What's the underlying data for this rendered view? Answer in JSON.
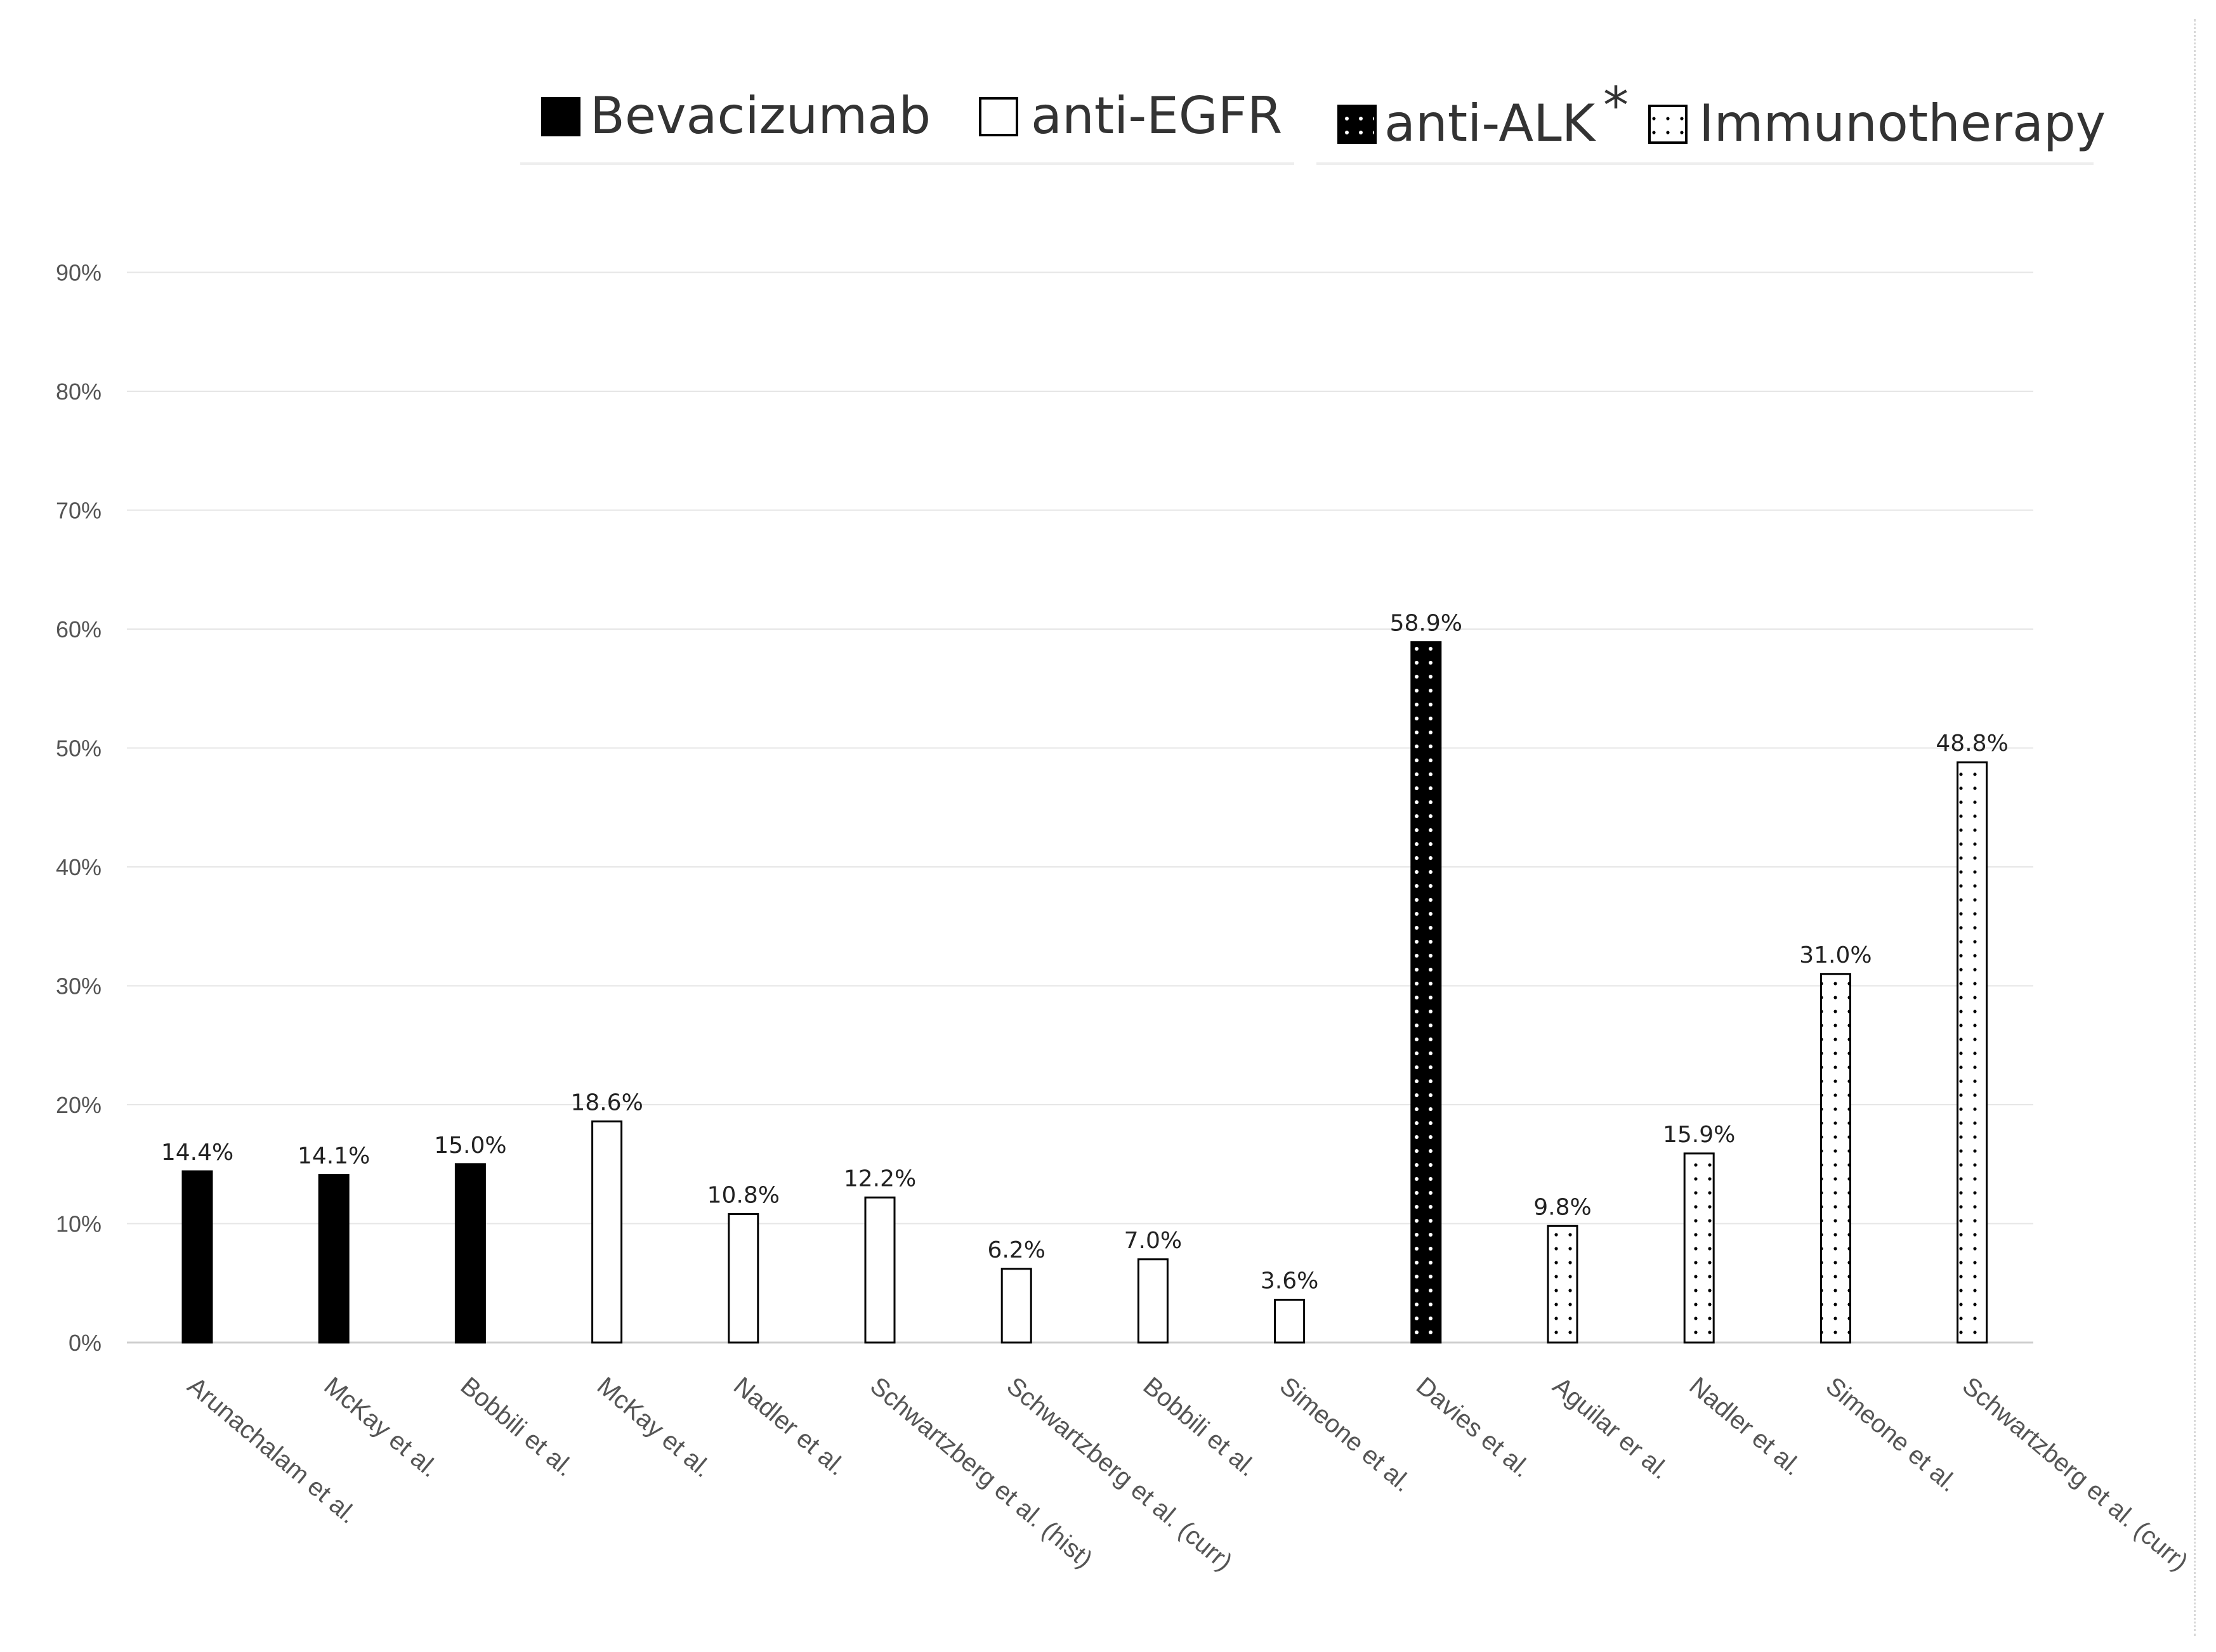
{
  "chart_data": {
    "type": "bar",
    "title": "",
    "xlabel": "",
    "ylabel": "",
    "ylim": [
      0,
      90
    ],
    "yticks": [
      0,
      10,
      20,
      30,
      40,
      50,
      60,
      70,
      80,
      90
    ],
    "ytick_labels": [
      "0%",
      "10%",
      "20%",
      "30%",
      "40%",
      "50%",
      "60%",
      "70%",
      "80%",
      "90%"
    ],
    "grid": true,
    "legend_position": "top",
    "legend": [
      {
        "key": "bev",
        "label": "Bevacizumab",
        "style": "solid-black"
      },
      {
        "key": "egfr",
        "label": "anti-EGFR",
        "style": "white"
      },
      {
        "key": "alk",
        "label": "anti-ALK",
        "asterisk": "*",
        "style": "black-dotted"
      },
      {
        "key": "immuno",
        "label": "Immunotherapy",
        "style": "white-dotted"
      }
    ],
    "bars": [
      {
        "category": "Arunachalam et al.",
        "series": "bev",
        "value": 14.4,
        "label": "14.4%"
      },
      {
        "category": "McKay et al.",
        "series": "bev",
        "value": 14.1,
        "label": "14.1%"
      },
      {
        "category": "Bobbili et al.",
        "series": "bev",
        "value": 15.0,
        "label": "15.0%"
      },
      {
        "category": "McKay et al.",
        "series": "egfr",
        "value": 18.6,
        "label": "18.6%"
      },
      {
        "category": "Nadler et al.",
        "series": "egfr",
        "value": 10.8,
        "label": "10.8%"
      },
      {
        "category": "Schwartzberg et al. (hist)",
        "series": "egfr",
        "value": 12.2,
        "label": "12.2%"
      },
      {
        "category": "Schwartzberg et al. (curr)",
        "series": "egfr",
        "value": 6.2,
        "label": "6.2%"
      },
      {
        "category": "Bobbili et al.",
        "series": "egfr",
        "value": 7.0,
        "label": "7.0%"
      },
      {
        "category": "Simeone et al.",
        "series": "egfr",
        "value": 3.6,
        "label": "3.6%"
      },
      {
        "category": "Davies et al.",
        "series": "alk",
        "value": 58.9,
        "label": "58.9%"
      },
      {
        "category": "Aguilar er al.",
        "series": "immuno",
        "value": 9.8,
        "label": "9.8%"
      },
      {
        "category": "Nadler et al.",
        "series": "immuno",
        "value": 15.9,
        "label": "15.9%"
      },
      {
        "category": "Simeone et al.",
        "series": "immuno",
        "value": 31.0,
        "label": "31.0%"
      },
      {
        "category": "Schwartzberg et al. (curr)",
        "series": "immuno",
        "value": 48.8,
        "label": "48.8%"
      }
    ]
  },
  "colors": {
    "black": "#000000",
    "white": "#ffffff",
    "grid": "#e6e6e6",
    "axis": "#cfcfcf"
  }
}
